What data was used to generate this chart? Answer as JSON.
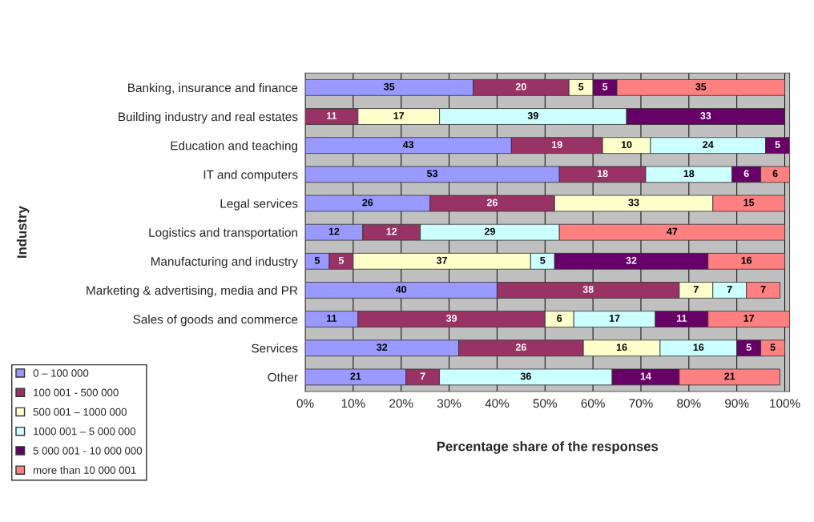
{
  "chart_data": {
    "type": "bar",
    "orientation": "horizontal",
    "stacked": true,
    "xlabel": "Percentage share of the responses",
    "ylabel": "Industry",
    "categories": [
      "Banking, insurance and finance",
      "Building industry and real estates",
      "Education and teaching",
      "IT and computers",
      "Legal services",
      "Logistics and transportation",
      "Manufacturing and industry",
      "Marketing & advertising, media and PR",
      "Sales of goods and commerce",
      "Services",
      "Other"
    ],
    "series": [
      {
        "name": "0 – 100 000",
        "color": "#9999ff",
        "values": [
          35,
          null,
          43,
          53,
          26,
          12,
          5,
          40,
          11,
          32,
          21
        ]
      },
      {
        "name": "100 001 - 500 000",
        "color": "#993366",
        "values": [
          20,
          11,
          19,
          18,
          26,
          12,
          5,
          38,
          39,
          26,
          7
        ]
      },
      {
        "name": "500 001 – 1000 000",
        "color": "#ffffcc",
        "values": [
          5,
          17,
          10,
          null,
          33,
          null,
          37,
          7,
          6,
          16,
          null
        ]
      },
      {
        "name": "1000 001 – 5 000 000",
        "color": "#ccffff",
        "values": [
          null,
          39,
          24,
          18,
          null,
          29,
          5,
          7,
          17,
          16,
          36
        ]
      },
      {
        "name": "5 000 001 - 10 000 000",
        "color": "#660066",
        "values": [
          5,
          33,
          5,
          6,
          null,
          null,
          32,
          null,
          11,
          5,
          14
        ]
      },
      {
        "name": "more than 10 000 001",
        "color": "#ff8080",
        "values": [
          35,
          null,
          null,
          6,
          15,
          47,
          16,
          7,
          17,
          5,
          21
        ]
      }
    ],
    "xlim": [
      0,
      101
    ],
    "xticks": [
      {
        "value": 0,
        "label": "0%"
      },
      {
        "value": 10,
        "label": "10%"
      },
      {
        "value": 20,
        "label": "20%"
      },
      {
        "value": 30,
        "label": "30%"
      },
      {
        "value": 40,
        "label": "40%"
      },
      {
        "value": 50,
        "label": "50%"
      },
      {
        "value": 60,
        "label": "60%"
      },
      {
        "value": 70,
        "label": "70%"
      },
      {
        "value": 80,
        "label": "80%"
      },
      {
        "value": 90,
        "label": "90%"
      },
      {
        "value": 100,
        "label": "100%"
      }
    ],
    "grid": "x",
    "legend": "left",
    "data_labels": true
  }
}
